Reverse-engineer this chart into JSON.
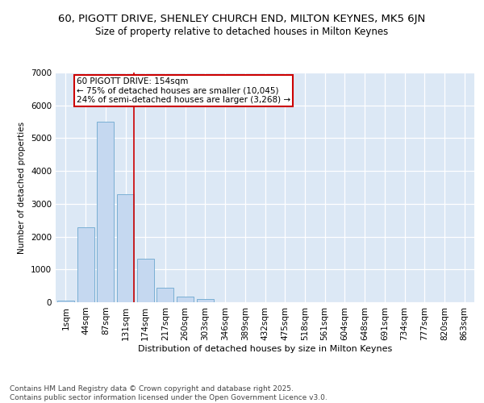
{
  "title1": "60, PIGOTT DRIVE, SHENLEY CHURCH END, MILTON KEYNES, MK5 6JN",
  "title2": "Size of property relative to detached houses in Milton Keynes",
  "xlabel": "Distribution of detached houses by size in Milton Keynes",
  "ylabel": "Number of detached properties",
  "categories": [
    "1sqm",
    "44sqm",
    "87sqm",
    "131sqm",
    "174sqm",
    "217sqm",
    "260sqm",
    "303sqm",
    "346sqm",
    "389sqm",
    "432sqm",
    "475sqm",
    "518sqm",
    "561sqm",
    "604sqm",
    "648sqm",
    "691sqm",
    "734sqm",
    "777sqm",
    "820sqm",
    "863sqm"
  ],
  "bar_heights": [
    50,
    2280,
    5500,
    3300,
    1320,
    430,
    170,
    110,
    0,
    0,
    0,
    0,
    0,
    0,
    0,
    0,
    0,
    0,
    0,
    0,
    0
  ],
  "bar_color": "#c5d8f0",
  "bar_edge_color": "#7aafd4",
  "vline_pos": 3.42,
  "vline_color": "#cc0000",
  "annotation_text": "60 PIGOTT DRIVE: 154sqm\n← 75% of detached houses are smaller (10,045)\n24% of semi-detached houses are larger (3,268) →",
  "annotation_edge_color": "#cc0000",
  "ylim": [
    0,
    7000
  ],
  "yticks": [
    0,
    1000,
    2000,
    3000,
    4000,
    5000,
    6000,
    7000
  ],
  "background_color": "#dce8f5",
  "grid_color": "#ffffff",
  "footer_text": "Contains HM Land Registry data © Crown copyright and database right 2025.\nContains public sector information licensed under the Open Government Licence v3.0.",
  "title1_fontsize": 9.5,
  "title2_fontsize": 8.5,
  "xlabel_fontsize": 8,
  "ylabel_fontsize": 7.5,
  "tick_fontsize": 7.5,
  "footer_fontsize": 6.5,
  "annot_fontsize": 7.5
}
